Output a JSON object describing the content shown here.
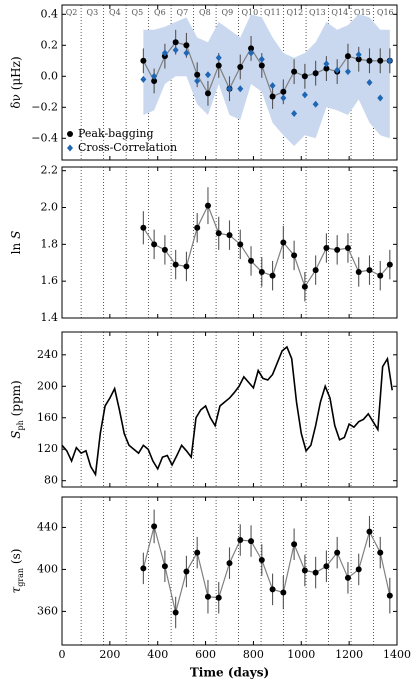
{
  "chart_data": [
    {
      "type": "errorbar",
      "ylabel": [
        "δν (μHz)"
      ],
      "xlim": [
        0,
        1400
      ],
      "ylim": [
        -0.54,
        0.46
      ],
      "yticks": [
        {
          "value": -0.4,
          "label": "−0.4"
        },
        {
          "value": -0.2,
          "label": "−0.2"
        },
        {
          "value": 0,
          "label": "0.0"
        },
        0.2,
        0.4
      ],
      "quarters": {
        "labels": [
          "Q2",
          "Q3",
          "Q4",
          "Q5",
          "Q6",
          "Q7",
          "Q8",
          "Q9",
          "Q10",
          "Q11",
          "Q12",
          "Q13",
          "Q14",
          "Q15",
          "Q16"
        ],
        "boundaries": [
          80,
          174,
          268,
          362,
          456,
          550,
          644,
          738,
          832,
          926,
          1020,
          1114,
          1208,
          1302
        ]
      },
      "x": [
        340,
        385,
        430,
        475,
        520,
        565,
        610,
        655,
        700,
        745,
        790,
        835,
        880,
        925,
        970,
        1015,
        1060,
        1105,
        1150,
        1195,
        1240,
        1285,
        1330,
        1370
      ],
      "band": {
        "color": "#c9d8ef",
        "upper": [
          0.3,
          0.3,
          0.32,
          0.35,
          0.38,
          0.25,
          0.22,
          0.35,
          0.3,
          0.25,
          0.4,
          0.38,
          0.25,
          0.15,
          0.12,
          0.15,
          0.22,
          0.35,
          0.3,
          0.33,
          0.4,
          0.38,
          0.3,
          0.3
        ],
        "lower": [
          -0.25,
          -0.22,
          -0.05,
          0.0,
          0.0,
          -0.18,
          -0.25,
          -0.05,
          -0.25,
          -0.28,
          -0.05,
          -0.1,
          -0.3,
          -0.38,
          -0.45,
          -0.38,
          -0.4,
          -0.2,
          -0.22,
          -0.25,
          -0.15,
          -0.3,
          -0.38,
          -0.4
        ]
      },
      "legend": "lower left",
      "series": [
        {
          "name": "Peak-bagging",
          "color": "#000000",
          "line_color": "#808080",
          "marker": "circle",
          "values": [
            0.1,
            -0.03,
            0.13,
            0.22,
            0.2,
            0.01,
            -0.11,
            0.07,
            -0.08,
            0.06,
            0.18,
            0.07,
            -0.13,
            -0.1,
            0.03,
            0.0,
            0.02,
            0.05,
            0.03,
            0.13,
            0.11,
            0.1,
            0.1,
            0.1
          ],
          "errors": [
            0.08,
            0.08,
            0.08,
            0.08,
            0.08,
            0.08,
            0.08,
            0.08,
            0.08,
            0.08,
            0.08,
            0.08,
            0.08,
            0.08,
            0.08,
            0.08,
            0.08,
            0.08,
            0.08,
            0.08,
            0.08,
            0.08,
            0.08,
            0.08
          ]
        },
        {
          "name": "Cross-Correlation",
          "color": "#1f66b3",
          "marker": "diamond",
          "values": [
            -0.02,
            0.0,
            0.15,
            0.17,
            0.15,
            -0.03,
            0.01,
            0.12,
            -0.08,
            -0.08,
            0.15,
            0.11,
            -0.06,
            -0.14,
            -0.24,
            -0.12,
            -0.18,
            0.08,
            0.04,
            0.03,
            0.14,
            -0.04,
            -0.14,
            0.1
          ]
        }
      ]
    },
    {
      "type": "errorbar",
      "ylabel": [
        "ln ",
        "S"
      ],
      "xlim": [
        0,
        1400
      ],
      "ylim": [
        1.4,
        2.22
      ],
      "yticks": [
        1.4,
        1.6,
        1.8,
        {
          "value": 2,
          "label": "2.0"
        },
        2.2
      ],
      "x": [
        340,
        385,
        430,
        475,
        520,
        565,
        610,
        655,
        700,
        745,
        790,
        835,
        880,
        925,
        970,
        1015,
        1060,
        1105,
        1150,
        1195,
        1240,
        1285,
        1330,
        1370
      ],
      "series": [
        {
          "color": "#000000",
          "line_color": "#808080",
          "marker": "circle",
          "values": [
            1.89,
            1.8,
            1.77,
            1.69,
            1.68,
            1.89,
            2.01,
            1.86,
            1.85,
            1.8,
            1.71,
            1.65,
            1.63,
            1.81,
            1.74,
            1.57,
            1.66,
            1.78,
            1.77,
            1.78,
            1.65,
            1.66,
            1.63,
            1.69
          ],
          "errors": [
            0.09,
            0.08,
            0.08,
            0.08,
            0.08,
            0.08,
            0.1,
            0.09,
            0.08,
            0.08,
            0.08,
            0.08,
            0.08,
            0.09,
            0.08,
            0.08,
            0.08,
            0.08,
            0.08,
            0.08,
            0.08,
            0.08,
            0.08,
            0.08
          ]
        }
      ]
    },
    {
      "type": "line",
      "ylabel": [
        "S",
        "ph",
        " (ppm)"
      ],
      "xlim": [
        0,
        1400
      ],
      "ylim": [
        72,
        269
      ],
      "yticks": [
        80,
        120,
        160,
        200,
        240
      ],
      "x": [
        0,
        20,
        40,
        60,
        80,
        100,
        120,
        140,
        160,
        180,
        200,
        220,
        240,
        260,
        280,
        300,
        320,
        340,
        360,
        380,
        400,
        420,
        440,
        460,
        480,
        500,
        520,
        540,
        560,
        580,
        600,
        620,
        640,
        660,
        680,
        700,
        720,
        740,
        760,
        780,
        800,
        820,
        840,
        860,
        880,
        900,
        920,
        940,
        960,
        980,
        1000,
        1020,
        1040,
        1060,
        1080,
        1100,
        1120,
        1140,
        1160,
        1180,
        1200,
        1220,
        1240,
        1260,
        1280,
        1300,
        1320,
        1340,
        1360,
        1380
      ],
      "series": [
        {
          "color": "#000000",
          "values": [
            125,
            118,
            105,
            122,
            115,
            118,
            98,
            88,
            140,
            175,
            185,
            197,
            170,
            140,
            125,
            120,
            115,
            125,
            120,
            105,
            95,
            110,
            112,
            100,
            112,
            125,
            118,
            110,
            160,
            170,
            175,
            160,
            150,
            175,
            180,
            185,
            192,
            200,
            212,
            205,
            198,
            220,
            210,
            208,
            215,
            230,
            245,
            250,
            235,
            180,
            140,
            118,
            125,
            150,
            180,
            200,
            185,
            150,
            132,
            135,
            152,
            148,
            155,
            158,
            165,
            155,
            145,
            225,
            235,
            195
          ]
        }
      ]
    },
    {
      "type": "errorbar",
      "ylabel": [
        "τ",
        "gran",
        " (s)"
      ],
      "xlabel": "Time (days)",
      "xlim": [
        0,
        1400
      ],
      "ylim": [
        328,
        469
      ],
      "xticks": [
        0,
        200,
        400,
        600,
        800,
        1000,
        1200,
        1400
      ],
      "yticks": [
        360,
        400,
        440
      ],
      "x": [
        340,
        385,
        430,
        475,
        520,
        565,
        610,
        655,
        700,
        745,
        790,
        835,
        880,
        925,
        970,
        1015,
        1060,
        1105,
        1150,
        1195,
        1240,
        1285,
        1330,
        1370
      ],
      "series": [
        {
          "color": "#000000",
          "line_color": "#808080",
          "marker": "circle",
          "values": [
            401,
            441,
            403,
            359,
            398,
            416,
            374,
            373,
            406,
            428,
            427,
            409,
            381,
            378,
            424,
            399,
            397,
            403,
            416,
            392,
            400,
            436,
            416,
            375
          ],
          "errors": [
            15,
            16,
            15,
            15,
            15,
            15,
            16,
            15,
            15,
            15,
            15,
            15,
            15,
            16,
            15,
            15,
            15,
            15,
            15,
            15,
            15,
            15,
            15,
            17
          ]
        }
      ]
    }
  ]
}
